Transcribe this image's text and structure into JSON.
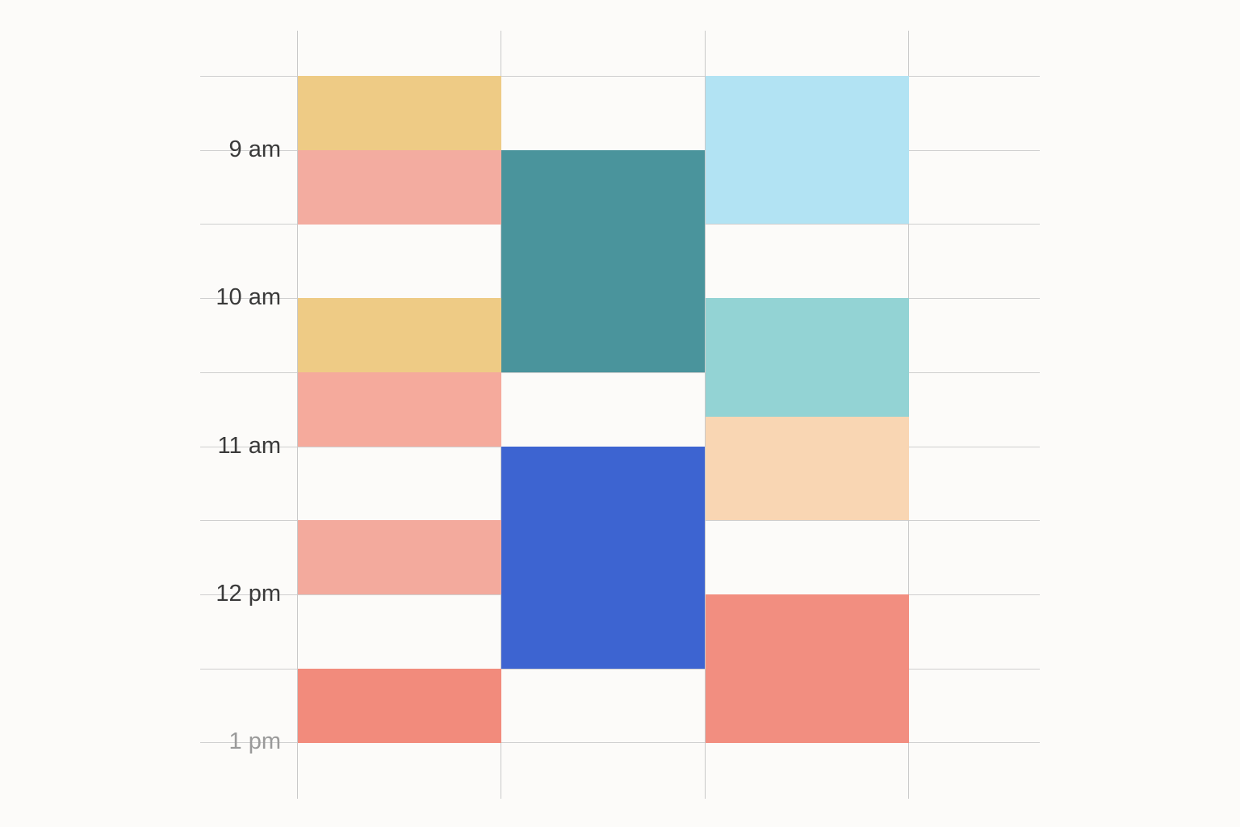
{
  "calendar": {
    "day_start_hour": 8.5,
    "time_labels": [
      {
        "text": "9 am",
        "hour": 9
      },
      {
        "text": "10 am",
        "hour": 10
      },
      {
        "text": "11 am",
        "hour": 11
      },
      {
        "text": "12 pm",
        "hour": 12
      },
      {
        "text": "1 pm",
        "hour": 13
      }
    ],
    "columns": 4,
    "events": [
      {
        "column": 0,
        "start": 8.5,
        "end": 9.0,
        "color": "#eecb85"
      },
      {
        "column": 0,
        "start": 9.0,
        "end": 9.5,
        "color": "#f3aca0"
      },
      {
        "column": 0,
        "start": 10.0,
        "end": 10.5,
        "color": "#eecb85"
      },
      {
        "column": 0,
        "start": 10.5,
        "end": 11.0,
        "color": "#f5aa9c"
      },
      {
        "column": 0,
        "start": 11.5,
        "end": 12.0,
        "color": "#f3aa9d"
      },
      {
        "column": 0,
        "start": 12.5,
        "end": 13.0,
        "color": "#f28b7c"
      },
      {
        "column": 1,
        "start": 9.0,
        "end": 10.5,
        "color": "#4a949c"
      },
      {
        "column": 1,
        "start": 11.0,
        "end": 12.5,
        "color": "#3d64d1"
      },
      {
        "column": 2,
        "start": 8.5,
        "end": 9.5,
        "color": "#b2e3f3"
      },
      {
        "column": 2,
        "start": 10.0,
        "end": 10.8,
        "color": "#93d3d4"
      },
      {
        "column": 2,
        "start": 10.8,
        "end": 11.5,
        "color": "#f9d6b3"
      },
      {
        "column": 2,
        "start": 12.0,
        "end": 12.5,
        "color": "#f28e80"
      },
      {
        "column": 2,
        "start": 12.5,
        "end": 13.0,
        "color": "#f28e80"
      }
    ]
  }
}
